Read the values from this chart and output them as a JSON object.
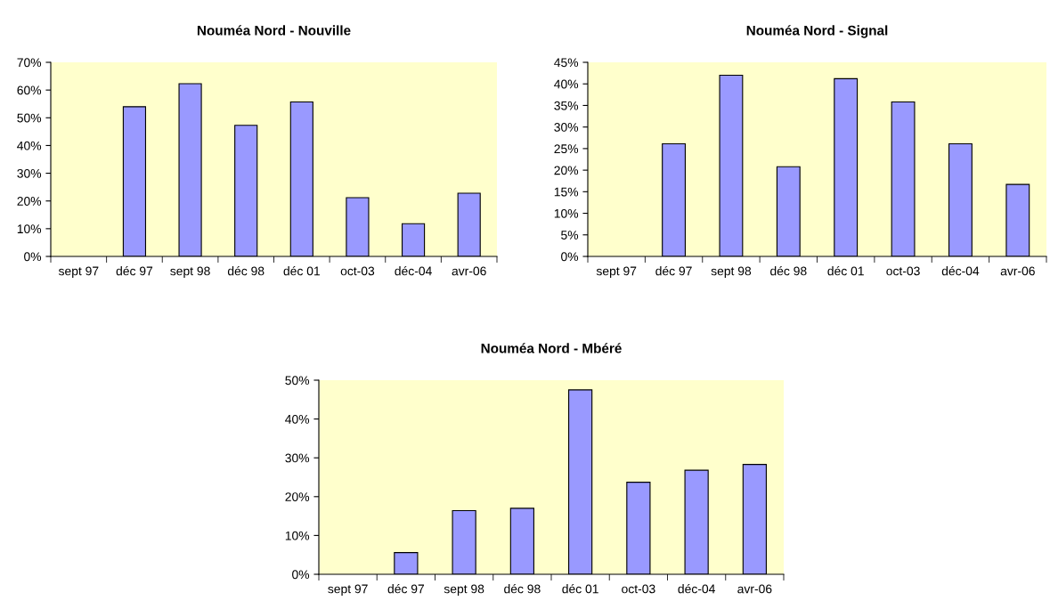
{
  "chart_data": [
    {
      "type": "bar",
      "title": "Nouméa Nord - Nouville",
      "categories": [
        "sept 97",
        "déc 97",
        "sept 98",
        "déc 98",
        "déc 01",
        "oct-03",
        "déc-04",
        "avr-06"
      ],
      "values": [
        null,
        54,
        62.3,
        47.3,
        55.7,
        21.2,
        11.8,
        22.8
      ],
      "color": "#9999ff",
      "ylim": [
        0,
        70
      ],
      "yticks": [
        {
          "value": 0,
          "label": "0%"
        },
        {
          "value": 10,
          "label": "10%"
        },
        {
          "value": 20,
          "label": "20%"
        },
        {
          "value": 30,
          "label": "30%"
        },
        {
          "value": 40,
          "label": "40%"
        },
        {
          "value": 50,
          "label": "50%"
        },
        {
          "value": 60,
          "label": "60%"
        },
        {
          "value": 70,
          "label": "70%"
        }
      ],
      "grid": false,
      "legend": false
    },
    {
      "type": "bar",
      "title": "Nouméa Nord - Signal",
      "categories": [
        "sept 97",
        "déc 97",
        "sept 98",
        "déc 98",
        "déc 01",
        "oct-03",
        "déc-04",
        "avr-06"
      ],
      "values": [
        null,
        26.1,
        42,
        20.8,
        41.2,
        35.8,
        26.1,
        16.7
      ],
      "color": "#9999ff",
      "ylim": [
        0,
        45
      ],
      "yticks": [
        {
          "value": 0,
          "label": "0%"
        },
        {
          "value": 5,
          "label": "5%"
        },
        {
          "value": 10,
          "label": "10%"
        },
        {
          "value": 15,
          "label": "15%"
        },
        {
          "value": 20,
          "label": "20%"
        },
        {
          "value": 25,
          "label": "25%"
        },
        {
          "value": 30,
          "label": "30%"
        },
        {
          "value": 35,
          "label": "35%"
        },
        {
          "value": 40,
          "label": "40%"
        },
        {
          "value": 45,
          "label": "45%"
        }
      ],
      "grid": false,
      "legend": false
    },
    {
      "type": "bar",
      "title": "Nouméa Nord - Mbéré",
      "categories": [
        "sept 97",
        "déc 97",
        "sept 98",
        "déc 98",
        "déc 01",
        "oct-03",
        "déc-04",
        "avr-06"
      ],
      "values": [
        null,
        5.6,
        16.4,
        17,
        47.5,
        23.7,
        26.8,
        28.3
      ],
      "color": "#9999ff",
      "ylim": [
        0,
        50
      ],
      "yticks": [
        {
          "value": 0,
          "label": "0%"
        },
        {
          "value": 10,
          "label": "10%"
        },
        {
          "value": 20,
          "label": "20%"
        },
        {
          "value": 30,
          "label": "30%"
        },
        {
          "value": 40,
          "label": "40%"
        },
        {
          "value": 50,
          "label": "50%"
        }
      ],
      "grid": false,
      "legend": false
    }
  ]
}
